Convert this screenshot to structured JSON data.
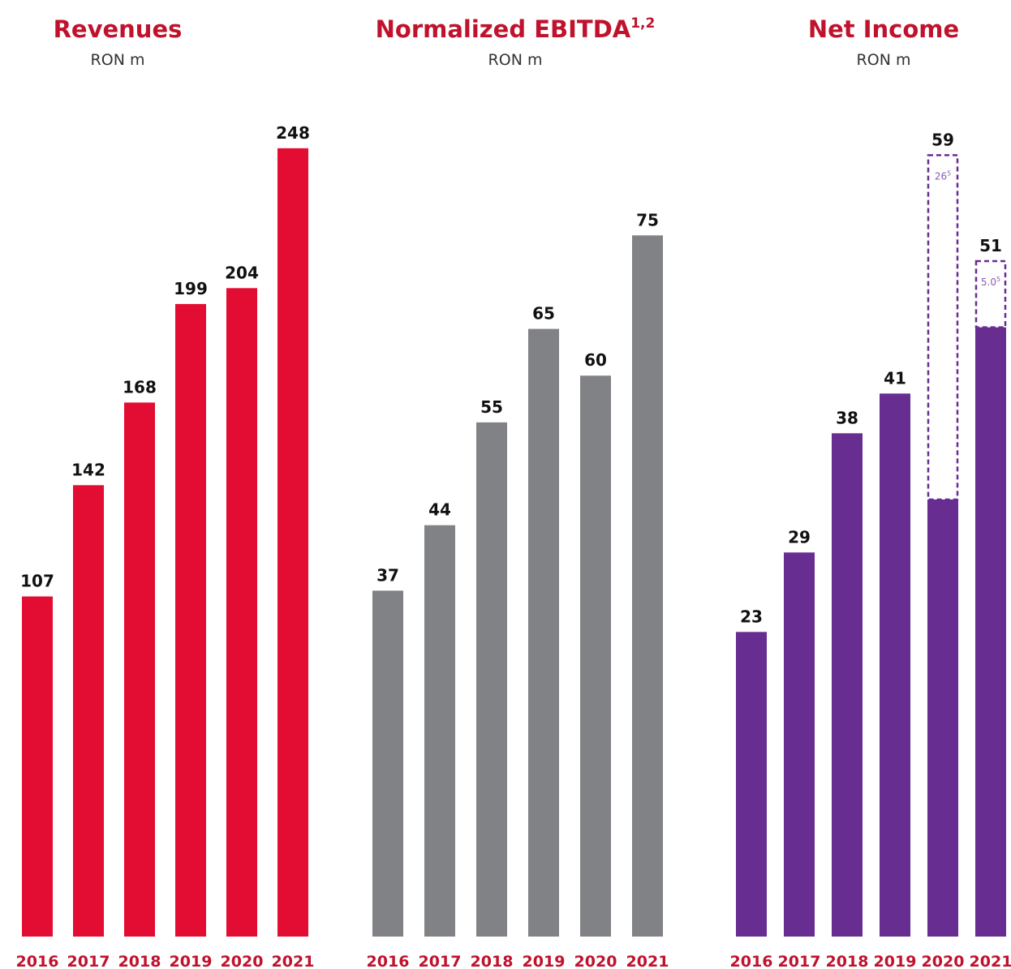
{
  "chart_data": [
    {
      "type": "bar",
      "title": "Revenues",
      "subtitle": "RON m",
      "categories": [
        "2016",
        "2017",
        "2018",
        "2019",
        "2020",
        "2021"
      ],
      "values": [
        107,
        142,
        168,
        199,
        204,
        248
      ],
      "color": "#e30c32",
      "ylim": [
        0,
        250
      ]
    },
    {
      "type": "bar",
      "title": "Normalized EBITDA",
      "title_note": "1,2",
      "subtitle": "RON m",
      "categories": [
        "2016",
        "2017",
        "2018",
        "2019",
        "2020",
        "2021"
      ],
      "values": [
        37,
        44,
        55,
        65,
        60,
        75
      ],
      "color": "#818285",
      "ylim": [
        0,
        85
      ]
    },
    {
      "type": "stacked_bar",
      "title": "Net Income",
      "subtitle": "RON m",
      "categories": [
        "2016",
        "2017",
        "2018",
        "2019",
        "2020",
        "2021"
      ],
      "series": [
        {
          "color": "#672d91",
          "values": [
            23,
            29,
            38,
            41,
            33,
            46
          ]
        },
        {
          "color": "#672d91",
          "dashed": true,
          "values": [
            null,
            null,
            null,
            null,
            26,
            5.0
          ],
          "value_labels": [
            null,
            null,
            null,
            null,
            "26",
            "5.0"
          ],
          "value_notes": [
            null,
            null,
            null,
            null,
            "5",
            "5"
          ]
        }
      ],
      "totals": [
        23,
        29,
        38,
        41,
        59,
        51
      ],
      "ylim": [
        0,
        60
      ]
    }
  ]
}
